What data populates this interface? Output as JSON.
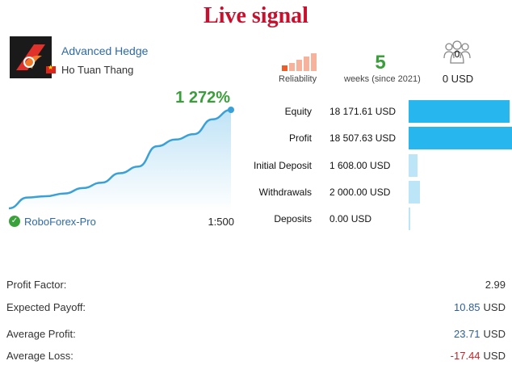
{
  "title": "Live signal",
  "signal": {
    "name": "Advanced Hedge",
    "author": "Ho Tuan Thang",
    "logo_icon": "signal-logo-icon",
    "flag_icon": "vietnam-flag-icon",
    "accent_color": "#c8102e"
  },
  "reliability": {
    "label": "Reliability",
    "bars_filled": 1,
    "bars_total": 5,
    "colors": [
      "#f05b2a",
      "#f7b29b"
    ]
  },
  "weeks": {
    "value": "5",
    "label": "weeks (since 2021)"
  },
  "subscribers": {
    "icon": "subscribers-icon",
    "count": "0",
    "price": "0 USD"
  },
  "growth": {
    "value": "1 272%",
    "curve": [
      2,
      10,
      11,
      13,
      17,
      21,
      28,
      33,
      48,
      53,
      57,
      68,
      75
    ],
    "line_color": "#3aa0d8"
  },
  "broker": {
    "name": "RoboForex-Pro",
    "leverage": "1:500",
    "icon": "verified-check-icon"
  },
  "stats": [
    {
      "label": "Equity",
      "value": "18 171.61 USD",
      "bar": 0.98,
      "color": "#27b7ee"
    },
    {
      "label": "Profit",
      "value": "18 507.63 USD",
      "bar": 1.0,
      "color": "#27b7ee"
    },
    {
      "label": "Initial Deposit",
      "value": "1 608.00 USD",
      "bar": 0.087,
      "color": "#bde5f8"
    },
    {
      "label": "Withdrawals",
      "value": "2 000.00 USD",
      "bar": 0.108,
      "color": "#bde5f8"
    },
    {
      "label": "Deposits",
      "value": "0.00 USD",
      "bar": 0.0,
      "color": "#bde5f8"
    }
  ],
  "metrics": [
    {
      "label": "Profit Factor:",
      "value": "2.99",
      "unit": "",
      "kind": "plain"
    },
    {
      "label": "Expected Payoff:",
      "value": "10.85",
      "unit": "USD",
      "kind": "num"
    },
    {
      "label": "Average Profit:",
      "value": "23.71",
      "unit": "USD",
      "kind": "num"
    },
    {
      "label": "Average Loss:",
      "value": "-17.44",
      "unit": "USD",
      "kind": "neg"
    }
  ]
}
